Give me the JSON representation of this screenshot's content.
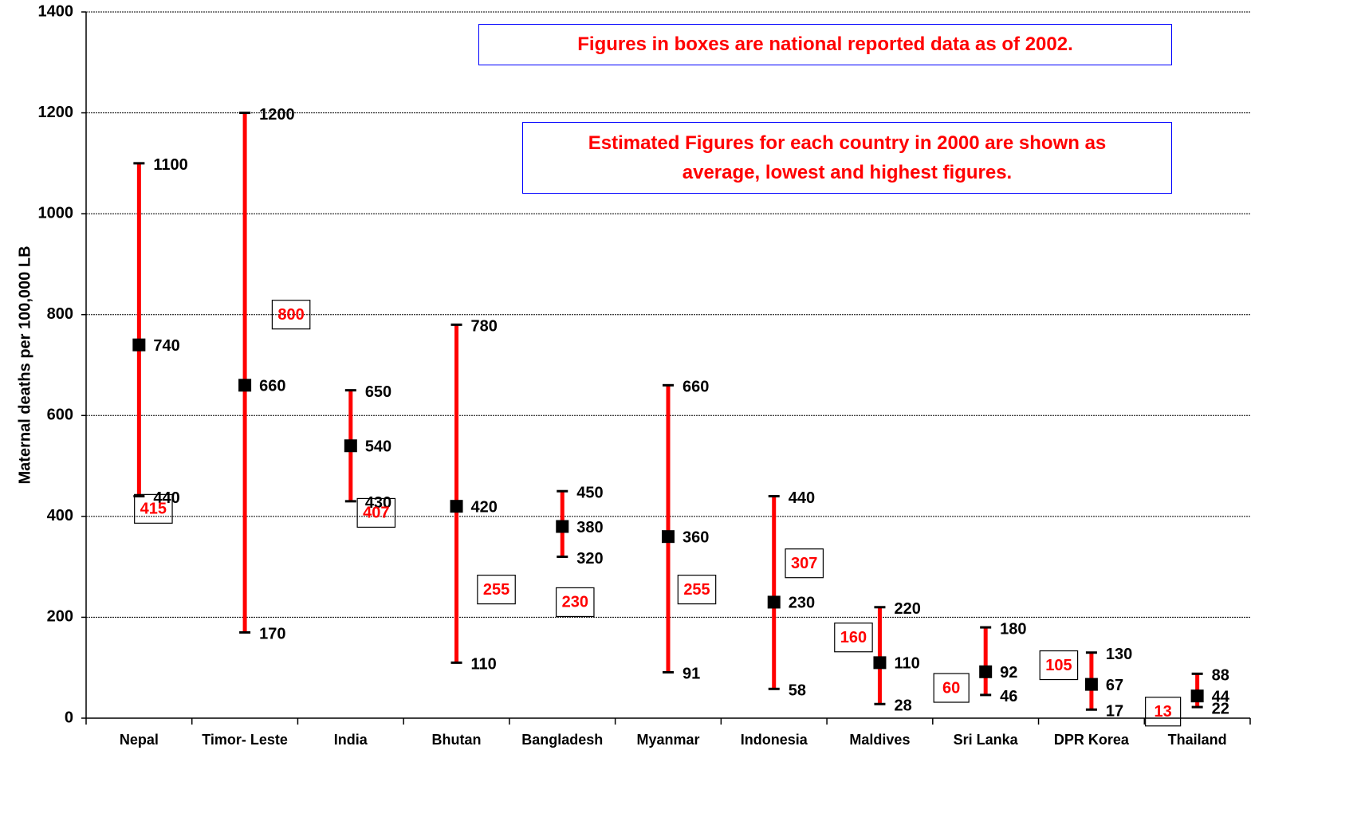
{
  "chart_data": {
    "type": "range",
    "y_label": "Maternal deaths per 100,000 LB",
    "annotations": [
      "Figures in boxes are national reported data as of 2002.",
      "Estimated Figures for each country in 2000 are shown as average, lowest and highest figures."
    ],
    "categories": [
      "Nepal",
      "Timor- Leste",
      "India",
      "Bhutan",
      "Bangladesh",
      "Myanmar",
      "Indonesia",
      "Maldives",
      "Sri Lanka",
      "DPR Korea",
      "Thailand"
    ],
    "high": [
      1100,
      1200,
      650,
      780,
      450,
      660,
      440,
      220,
      180,
      130,
      88
    ],
    "average": [
      740,
      660,
      540,
      420,
      380,
      360,
      230,
      110,
      92,
      67,
      44
    ],
    "low": [
      440,
      170,
      430,
      110,
      320,
      91,
      58,
      28,
      46,
      17,
      22
    ],
    "reported": [
      415,
      800,
      407,
      255,
      230,
      255,
      307,
      160,
      60,
      105,
      13
    ],
    "color": "#ff0000",
    "marker_color": "#000000",
    "reported_color": "#ff0000",
    "ylim": [
      0,
      1400
    ],
    "yticks": [
      0,
      200,
      400,
      600,
      800,
      1000,
      1200,
      1400
    ],
    "grid": true
  }
}
